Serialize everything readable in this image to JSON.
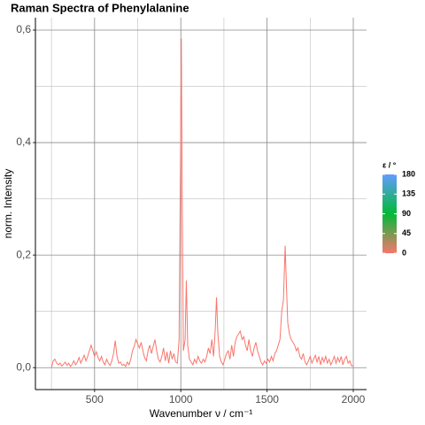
{
  "chart_data": {
    "type": "line",
    "title": "Raman Spectra of Phenylalanine",
    "xlabel": "Wavenumber ν / cm⁻¹",
    "ylabel": "norm. Intensity",
    "color": "#f8766d",
    "x": [
      250,
      260,
      270,
      280,
      290,
      300,
      310,
      320,
      330,
      340,
      350,
      360,
      370,
      380,
      390,
      400,
      410,
      420,
      430,
      440,
      450,
      460,
      470,
      480,
      490,
      500,
      510,
      520,
      530,
      540,
      550,
      560,
      570,
      580,
      590,
      600,
      610,
      620,
      630,
      640,
      650,
      660,
      670,
      680,
      690,
      700,
      710,
      720,
      730,
      740,
      750,
      760,
      770,
      780,
      790,
      800,
      810,
      820,
      830,
      840,
      850,
      860,
      870,
      880,
      890,
      900,
      910,
      920,
      930,
      940,
      950,
      960,
      970,
      980,
      990,
      1000,
      1003,
      1008,
      1015,
      1025,
      1032,
      1040,
      1050,
      1060,
      1070,
      1080,
      1090,
      1100,
      1110,
      1120,
      1130,
      1140,
      1150,
      1160,
      1170,
      1180,
      1190,
      1200,
      1207,
      1215,
      1225,
      1235,
      1245,
      1255,
      1265,
      1275,
      1285,
      1295,
      1305,
      1315,
      1325,
      1335,
      1345,
      1355,
      1365,
      1375,
      1385,
      1395,
      1405,
      1415,
      1425,
      1435,
      1445,
      1455,
      1465,
      1475,
      1485,
      1495,
      1505,
      1515,
      1525,
      1535,
      1545,
      1555,
      1565,
      1575,
      1585,
      1595,
      1605,
      1612,
      1620,
      1630,
      1640,
      1650,
      1660,
      1670,
      1680,
      1690,
      1700,
      1710,
      1720,
      1730,
      1740,
      1750,
      1760,
      1770,
      1780,
      1790,
      1800,
      1810,
      1820,
      1830,
      1840,
      1850,
      1860,
      1870,
      1880,
      1890,
      1900,
      1910,
      1920,
      1930,
      1940,
      1950,
      1960,
      1970,
      1980,
      1990,
      2000
    ],
    "values": [
      0.0,
      0.012,
      0.015,
      0.008,
      0.005,
      0.008,
      0.003,
      0.006,
      0.01,
      0.004,
      0.008,
      0.002,
      0.006,
      0.012,
      0.005,
      0.01,
      0.018,
      0.008,
      0.015,
      0.022,
      0.012,
      0.02,
      0.03,
      0.04,
      0.03,
      0.02,
      0.028,
      0.018,
      0.012,
      0.02,
      0.01,
      0.005,
      0.015,
      0.008,
      0.004,
      0.012,
      0.025,
      0.048,
      0.02,
      0.008,
      0.01,
      0.004,
      0.006,
      0.002,
      0.01,
      0.005,
      0.015,
      0.03,
      0.038,
      0.05,
      0.042,
      0.035,
      0.045,
      0.03,
      0.018,
      0.012,
      0.03,
      0.04,
      0.025,
      0.038,
      0.05,
      0.03,
      0.015,
      0.01,
      0.02,
      0.035,
      0.012,
      0.028,
      0.008,
      0.03,
      0.015,
      0.025,
      0.01,
      0.008,
      0.05,
      0.45,
      0.585,
      0.3,
      0.03,
      0.05,
      0.155,
      0.04,
      0.015,
      0.01,
      0.005,
      0.015,
      0.008,
      0.02,
      0.012,
      0.008,
      0.015,
      0.01,
      0.02,
      0.035,
      0.025,
      0.05,
      0.02,
      0.07,
      0.125,
      0.06,
      0.02,
      0.01,
      0.005,
      0.015,
      0.025,
      0.03,
      0.015,
      0.04,
      0.02,
      0.045,
      0.055,
      0.06,
      0.065,
      0.05,
      0.055,
      0.04,
      0.03,
      0.05,
      0.03,
      0.02,
      0.035,
      0.045,
      0.03,
      0.02,
      0.01,
      0.005,
      0.012,
      0.008,
      0.015,
      0.01,
      0.02,
      0.012,
      0.025,
      0.03,
      0.04,
      0.05,
      0.1,
      0.12,
      0.217,
      0.15,
      0.08,
      0.06,
      0.05,
      0.045,
      0.04,
      0.03,
      0.035,
      0.02,
      0.015,
      0.025,
      0.01,
      0.005,
      0.012,
      0.02,
      0.008,
      0.015,
      0.022,
      0.01,
      0.02,
      0.005,
      0.018,
      0.01,
      0.02,
      0.008,
      0.015,
      0.005,
      0.012,
      0.02,
      0.008,
      0.018,
      0.01,
      0.02,
      0.005,
      0.015,
      0.02,
      0.008,
      0.012,
      0.003,
      0.004
    ],
    "xlim": [
      157,
      2077
    ],
    "ylim": [
      -0.039,
      0.622
    ],
    "xticks": [
      500,
      1000,
      1500,
      2000
    ],
    "xminor": [
      250,
      750,
      1250,
      1750
    ],
    "yticks": [
      {
        "value": 0,
        "label": "0,0"
      },
      {
        "value": 0.2,
        "label": "0,2"
      },
      {
        "value": 0.4,
        "label": "0,4"
      },
      {
        "value": 0.6,
        "label": "0,6"
      }
    ],
    "yminor": [
      0.1,
      0.3,
      0.5
    ],
    "grid": true,
    "colorbar": {
      "title": "ε / °",
      "lim": [
        0,
        180
      ],
      "ticks": [
        0,
        45,
        90,
        135,
        180
      ],
      "colors": [
        "#f8766d",
        "#00ba38",
        "#619cff"
      ]
    }
  }
}
